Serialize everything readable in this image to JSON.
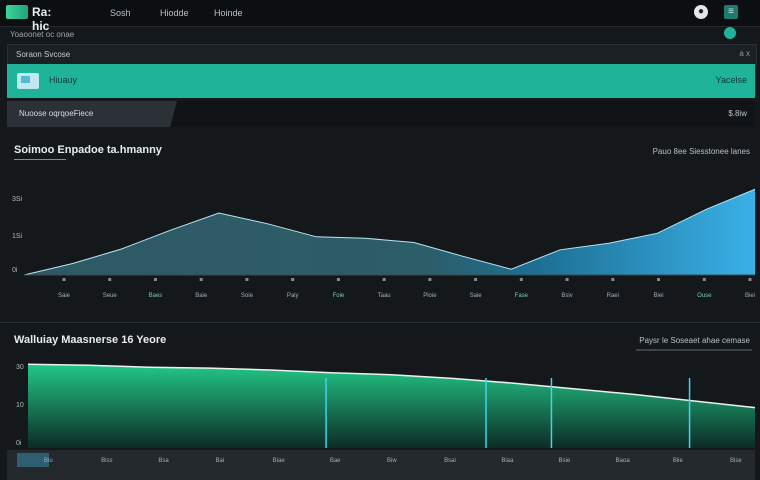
{
  "app": {
    "logo_text": "Ra: hic"
  },
  "nav": [
    "Sosh",
    "Hiodde",
    "Hoinde"
  ],
  "subheader": {
    "breadcrumb": "Yoaoonet oc onae"
  },
  "panel": {
    "title": "Soraon Svcose",
    "right_text": "a x"
  },
  "teal_bar": {
    "label": "Hiuauy",
    "right": "Yacelse"
  },
  "filter_bar": {
    "label": "Nuoose oqrqoeFiece",
    "right": "$.8iw"
  },
  "chart1": {
    "title": "Soimoo Enpadoe ta.hmanny",
    "note": "Pauo 8ee Siesstonee lanes"
  },
  "chart2": {
    "title": "Walluiay Maasnerse 16 Yeore",
    "note": "Paysr le Soseaet ahae cemase"
  },
  "chart_data": [
    {
      "type": "area",
      "title": "Soimoo Enpadoe ta.hmanny",
      "y_ticks": [
        "3Si",
        "1Si",
        "0i"
      ],
      "x": [
        "Saie",
        "Seue",
        "Baes",
        "Baie",
        "Soie",
        "Paiy",
        "Foie",
        "Taau",
        "Ploie",
        "Saie",
        "Fase",
        "Bsiv",
        "Raei",
        "Biei",
        "Ouse",
        "Biei"
      ],
      "series": [
        {
          "values": [
            0.0,
            0.16,
            0.36,
            0.62,
            0.86,
            0.71,
            0.53,
            0.51,
            0.45,
            0.26,
            0.08,
            0.35,
            0.44,
            0.58,
            0.91,
            1.19
          ],
          "color_left": "#3f6f7a",
          "color_right": "#3aa7e0"
        }
      ],
      "ylim": [
        0,
        1.4
      ]
    },
    {
      "type": "area",
      "title": "Walluiay Maasnerse 16 Yeore",
      "y_ticks": [
        "30",
        "10",
        "0i"
      ],
      "x": [
        "Biu",
        "Biss",
        "Bsa",
        "Bai",
        "Biae",
        "Bae",
        "Biw",
        "Bsai",
        "Biaa",
        "Bsie",
        "Baoa",
        "Biie",
        "Bise"
      ],
      "series": [
        {
          "values": [
            0.89,
            0.88,
            0.86,
            0.85,
            0.83,
            0.8,
            0.78,
            0.74,
            0.69,
            0.63,
            0.57,
            0.5,
            0.43
          ],
          "color": "#1fbf84"
        }
      ],
      "ylim": [
        0,
        1.0
      ]
    }
  ],
  "colors": {
    "accent": "#1fb49a",
    "chart1_blue": "#3ab0e8",
    "chart2_green": "#1fbf84"
  }
}
